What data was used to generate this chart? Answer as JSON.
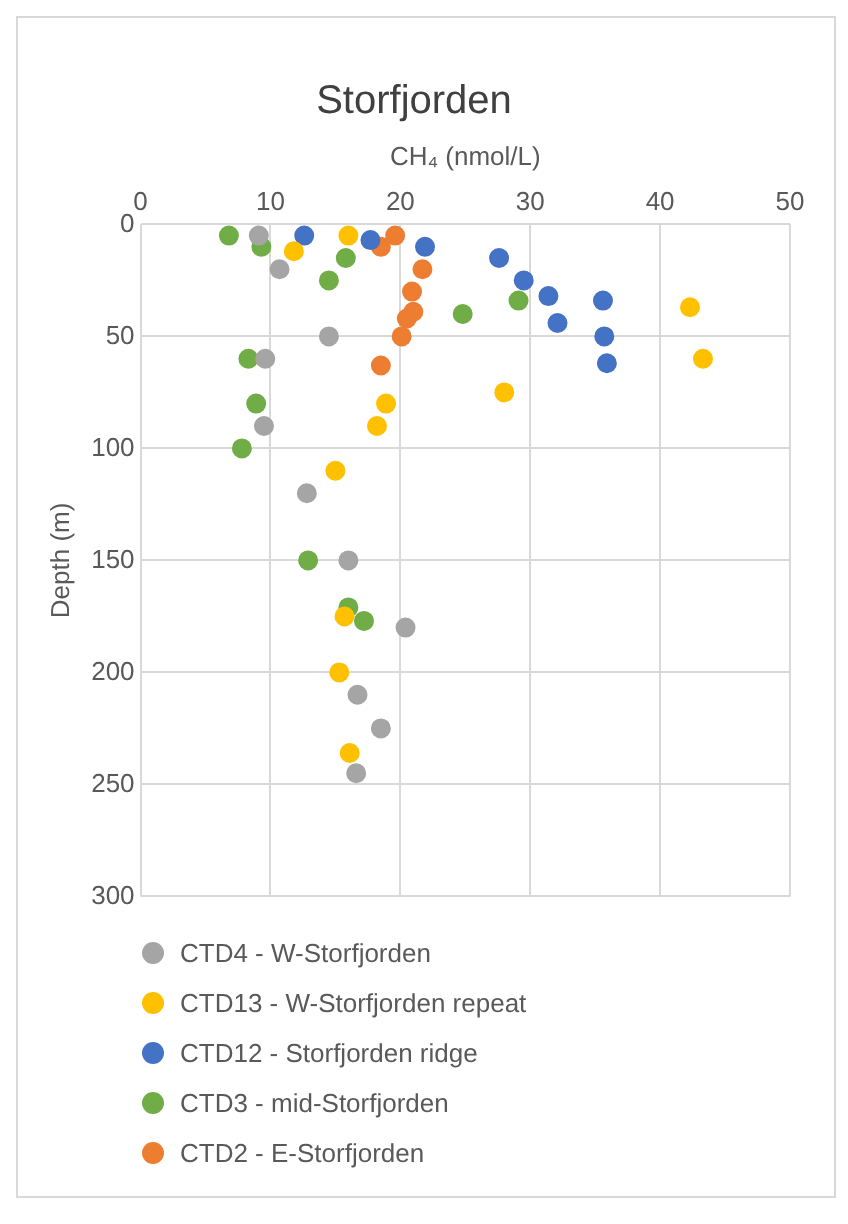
{
  "chart_data": {
    "type": "scatter",
    "title": "Storfjorden",
    "xlabel": "CH₄ (nmol/L)",
    "ylabel": "Depth (m)",
    "xlim": [
      0,
      50
    ],
    "xticks": [
      0,
      10,
      20,
      30,
      40,
      50
    ],
    "ylim": [
      300,
      0
    ],
    "yticks": [
      0,
      50,
      100,
      150,
      200,
      250,
      300
    ],
    "grid": true,
    "legend": "bottom",
    "marker": "circle",
    "series": [
      {
        "name": "CTD4 - W-Storfjorden",
        "color": "#a5a5a5",
        "x": [
          9.1,
          10.7,
          14.5,
          9.6,
          9.5,
          12.8,
          16.0,
          20.4,
          16.7,
          18.5,
          16.6
        ],
        "values": [
          5,
          20,
          50,
          60,
          90,
          120,
          150,
          180,
          210,
          225,
          245
        ]
      },
      {
        "name": "CTD13 - W-Storfjorden repeat",
        "color": "#ffc000",
        "x": [
          16.0,
          11.8,
          42.3,
          43.3,
          28.0,
          18.9,
          18.2,
          15.0,
          15.7,
          15.3,
          16.1
        ],
        "values": [
          5,
          12,
          37,
          60,
          75,
          80,
          90,
          110,
          175,
          200,
          236
        ]
      },
      {
        "name": "CTD12 - Storfjorden ridge",
        "color": "#4472c4",
        "x": [
          12.6,
          17.7,
          21.9,
          27.6,
          29.5,
          31.4,
          35.6,
          32.1,
          35.7,
          35.9
        ],
        "values": [
          5,
          7,
          10,
          15,
          25,
          32,
          34,
          44,
          50,
          62
        ]
      },
      {
        "name": "CTD3 - mid-Storfjorden",
        "color": "#70ad47",
        "x": [
          6.8,
          9.3,
          15.8,
          14.5,
          29.1,
          24.8,
          8.3,
          8.9,
          7.8,
          12.9,
          16.0,
          17.2
        ],
        "values": [
          5,
          10,
          15,
          25,
          34,
          40,
          60,
          80,
          100,
          150,
          171,
          177
        ]
      },
      {
        "name": "CTD2 - E-Storfjorden",
        "color": "#ed7d31",
        "x": [
          19.6,
          18.5,
          21.7,
          20.9,
          21.0,
          20.5,
          20.1,
          18.5
        ],
        "values": [
          5,
          10,
          20,
          30,
          39,
          42,
          50,
          63
        ]
      }
    ]
  }
}
